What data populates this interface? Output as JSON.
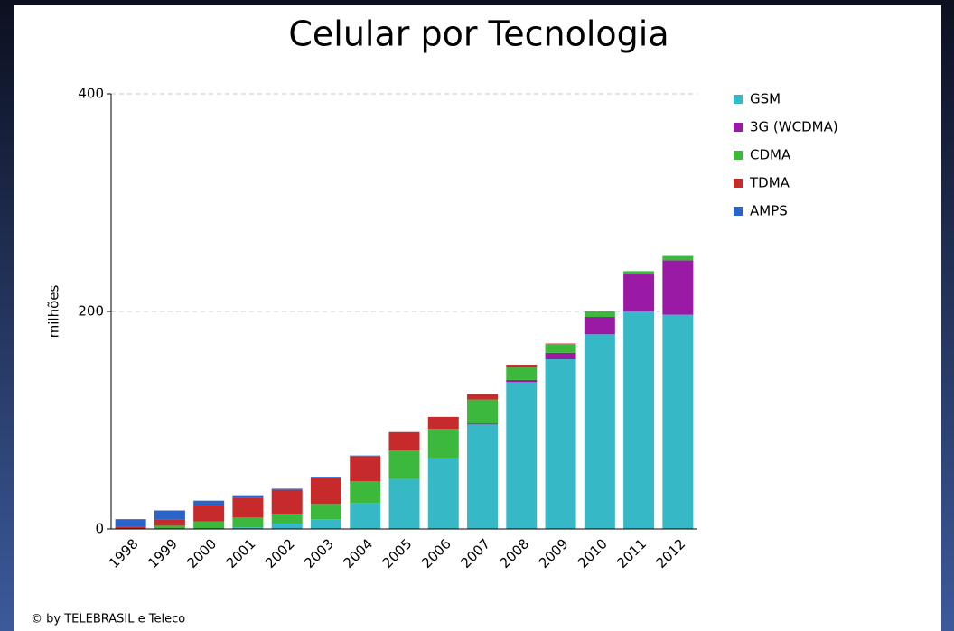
{
  "chart_data": {
    "type": "stacked_bar",
    "title": "Celular por Tecnologia",
    "y_label": "milhões",
    "footer": "© by TELEBRASIL e Teleco",
    "categories": [
      "1998",
      "1999",
      "2000",
      "2001",
      "2002",
      "2003",
      "2004",
      "2005",
      "2006",
      "2007",
      "2008",
      "2009",
      "2010",
      "2011",
      "2012"
    ],
    "series": [
      {
        "name": "GSM",
        "color": "#36b8c6",
        "values": [
          0,
          0,
          0,
          1.5,
          5,
          9,
          24,
          46,
          65,
          96,
          135,
          156,
          179,
          200,
          197
        ]
      },
      {
        "name": "3G (WCDMA)",
        "color": "#9a1aa6",
        "values": [
          0,
          0,
          0,
          0,
          0,
          0,
          0,
          0,
          0,
          1,
          2,
          6,
          16,
          34,
          50
        ]
      },
      {
        "name": "CDMA",
        "color": "#3cb83c",
        "values": [
          0,
          3,
          7,
          9,
          9,
          14,
          20,
          26,
          27,
          22,
          12,
          8,
          5,
          3,
          4
        ]
      },
      {
        "name": "TDMA",
        "color": "#c62a2a",
        "values": [
          2,
          6,
          15,
          18,
          22,
          24,
          23,
          17,
          11,
          5,
          2,
          0.5,
          0,
          0,
          0
        ]
      },
      {
        "name": "AMPS",
        "color": "#2a64c8",
        "values": [
          7,
          8,
          4,
          2.5,
          1,
          1,
          0.5,
          0,
          0,
          0,
          0,
          0,
          0,
          0,
          0
        ]
      }
    ],
    "ylim": [
      0,
      400
    ],
    "yticks": [
      0,
      200,
      400
    ],
    "grid": true,
    "legend": "right"
  }
}
